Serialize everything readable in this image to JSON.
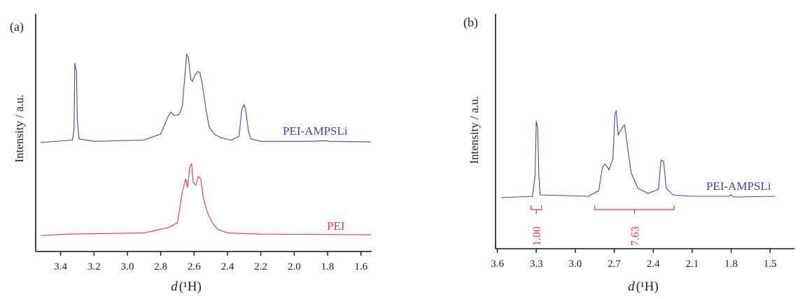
{
  "colors": {
    "series1": "#3f4a96",
    "series2": "#e0383a",
    "axis": "#111111"
  },
  "chart_data": [
    {
      "type": "line",
      "panel_label": "(a)",
      "xlabel_prefix": "d",
      "xlabel_suffix": "(¹H)",
      "ylabel": "Intensity / a.u.",
      "xlim": [
        3.52,
        1.54
      ],
      "x_reversed": true,
      "x_ticks": [
        3.4,
        3.2,
        3.0,
        2.8,
        2.6,
        2.4,
        2.2,
        2.0,
        1.8,
        1.6
      ],
      "x_tick_labels": [
        "3.4",
        "3.2",
        "3.0",
        "2.8",
        "2.6",
        "2.4",
        "2.2",
        "2.0",
        "1.8",
        "1.6"
      ],
      "grid": false,
      "series": [
        {
          "name": "PEI-AMPSLi",
          "color": "#3f4a96",
          "baseline_intensity": 0.0,
          "points": [
            [
              3.52,
              0
            ],
            [
              3.33,
              0.02
            ],
            [
              3.32,
              0.1
            ],
            [
              3.315,
              0.65
            ],
            [
              3.305,
              0.58
            ],
            [
              3.3,
              0.2
            ],
            [
              3.29,
              0.03
            ],
            [
              3.2,
              0.01
            ],
            [
              2.9,
              0.02
            ],
            [
              2.8,
              0.07
            ],
            [
              2.76,
              0.2
            ],
            [
              2.74,
              0.25
            ],
            [
              2.72,
              0.22
            ],
            [
              2.69,
              0.23
            ],
            [
              2.67,
              0.3
            ],
            [
              2.655,
              0.55
            ],
            [
              2.645,
              0.72
            ],
            [
              2.635,
              0.7
            ],
            [
              2.62,
              0.52
            ],
            [
              2.61,
              0.5
            ],
            [
              2.595,
              0.55
            ],
            [
              2.58,
              0.58
            ],
            [
              2.565,
              0.57
            ],
            [
              2.55,
              0.47
            ],
            [
              2.53,
              0.28
            ],
            [
              2.51,
              0.13
            ],
            [
              2.48,
              0.07
            ],
            [
              2.44,
              0.04
            ],
            [
              2.38,
              0.02
            ],
            [
              2.33,
              0.05
            ],
            [
              2.315,
              0.27
            ],
            [
              2.3,
              0.31
            ],
            [
              2.29,
              0.26
            ],
            [
              2.275,
              0.1
            ],
            [
              2.26,
              0.03
            ],
            [
              2.2,
              0.01
            ],
            [
              1.9,
              0.01
            ],
            [
              1.82,
              0.015
            ],
            [
              1.78,
              0.01
            ],
            [
              1.54,
              0.005
            ]
          ]
        },
        {
          "name": "PEI",
          "color": "#e0383a",
          "baseline_intensity": 0.0,
          "points": [
            [
              3.52,
              0
            ],
            [
              3.35,
              0.01
            ],
            [
              2.9,
              0.02
            ],
            [
              2.76,
              0.06
            ],
            [
              2.7,
              0.1
            ],
            [
              2.67,
              0.35
            ],
            [
              2.65,
              0.45
            ],
            [
              2.64,
              0.38
            ],
            [
              2.625,
              0.55
            ],
            [
              2.615,
              0.57
            ],
            [
              2.605,
              0.42
            ],
            [
              2.59,
              0.4
            ],
            [
              2.575,
              0.47
            ],
            [
              2.56,
              0.45
            ],
            [
              2.545,
              0.3
            ],
            [
              2.52,
              0.18
            ],
            [
              2.49,
              0.1
            ],
            [
              2.46,
              0.05
            ],
            [
              2.4,
              0.02
            ],
            [
              2.2,
              0.01
            ],
            [
              1.54,
              0.005
            ]
          ]
        }
      ]
    },
    {
      "type": "line",
      "panel_label": "(b)",
      "xlabel_prefix": "d",
      "xlabel_suffix": "(¹H)",
      "ylabel": "Intensity / a.u.",
      "xlim": [
        3.63,
        1.34
      ],
      "x_reversed": true,
      "x_ticks": [
        3.6,
        3.3,
        3.0,
        2.7,
        2.4,
        2.1,
        1.8,
        1.5
      ],
      "x_tick_labels": [
        "3.6",
        "3.3",
        "3.0",
        "2.7",
        "2.4",
        "2.1",
        "1.8",
        "1.5"
      ],
      "grid": false,
      "series": [
        {
          "name": "PEI-AMPSLi",
          "color": "#3f4a96",
          "points": [
            [
              3.57,
              0
            ],
            [
              3.33,
              0.01
            ],
            [
              3.31,
              0.15
            ],
            [
              3.3,
              0.55
            ],
            [
              3.29,
              0.5
            ],
            [
              3.28,
              0.15
            ],
            [
              3.27,
              0.02
            ],
            [
              2.9,
              0.01
            ],
            [
              2.82,
              0.05
            ],
            [
              2.79,
              0.22
            ],
            [
              2.77,
              0.24
            ],
            [
              2.74,
              0.2
            ],
            [
              2.71,
              0.28
            ],
            [
              2.695,
              0.6
            ],
            [
              2.685,
              0.62
            ],
            [
              2.67,
              0.45
            ],
            [
              2.64,
              0.5
            ],
            [
              2.62,
              0.52
            ],
            [
              2.6,
              0.38
            ],
            [
              2.57,
              0.18
            ],
            [
              2.52,
              0.07
            ],
            [
              2.44,
              0.03
            ],
            [
              2.36,
              0.06
            ],
            [
              2.34,
              0.27
            ],
            [
              2.32,
              0.26
            ],
            [
              2.3,
              0.07
            ],
            [
              2.25,
              0.02
            ],
            [
              2.1,
              0.01
            ],
            [
              1.82,
              0.01
            ],
            [
              1.8,
              0.02
            ],
            [
              1.78,
              0.005
            ],
            [
              1.46,
              0.01
            ]
          ]
        }
      ],
      "integrations": [
        {
          "label": "1.00",
          "range": [
            3.34,
            3.26
          ],
          "color": "#e0383a"
        },
        {
          "label": "7.63",
          "range": [
            2.85,
            2.24
          ],
          "color": "#e0383a"
        }
      ]
    }
  ]
}
